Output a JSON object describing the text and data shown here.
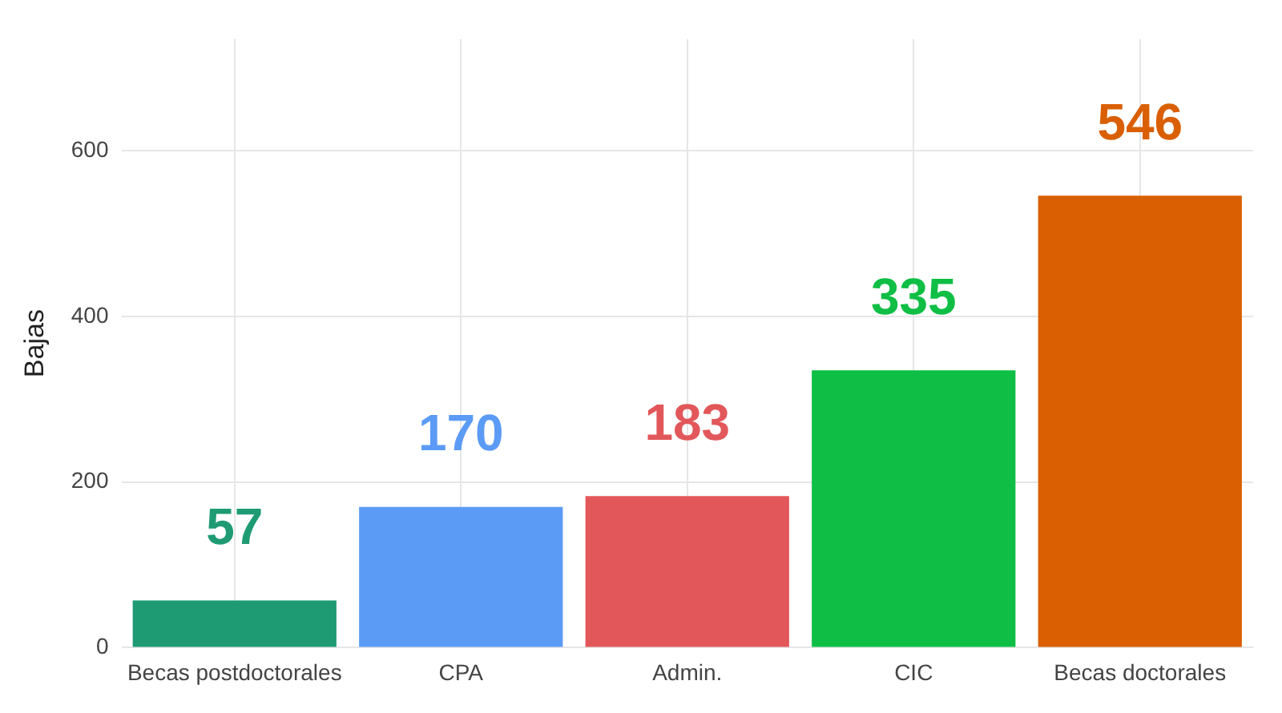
{
  "chart_data": {
    "type": "bar",
    "ylabel": "Bajas",
    "categories": [
      "Becas postdoctorales",
      "CPA",
      "Admin.",
      "CIC",
      "Becas doctorales"
    ],
    "values": [
      57,
      170,
      183,
      335,
      546
    ],
    "colors": [
      "#1f9b74",
      "#5c9bf5",
      "#e2575a",
      "#0ebe45",
      "#d95f02"
    ],
    "ylim": [
      0,
      735
    ],
    "yticks": [
      0,
      200,
      400,
      600
    ],
    "grid": true,
    "data_labels": true,
    "legend": false
  }
}
